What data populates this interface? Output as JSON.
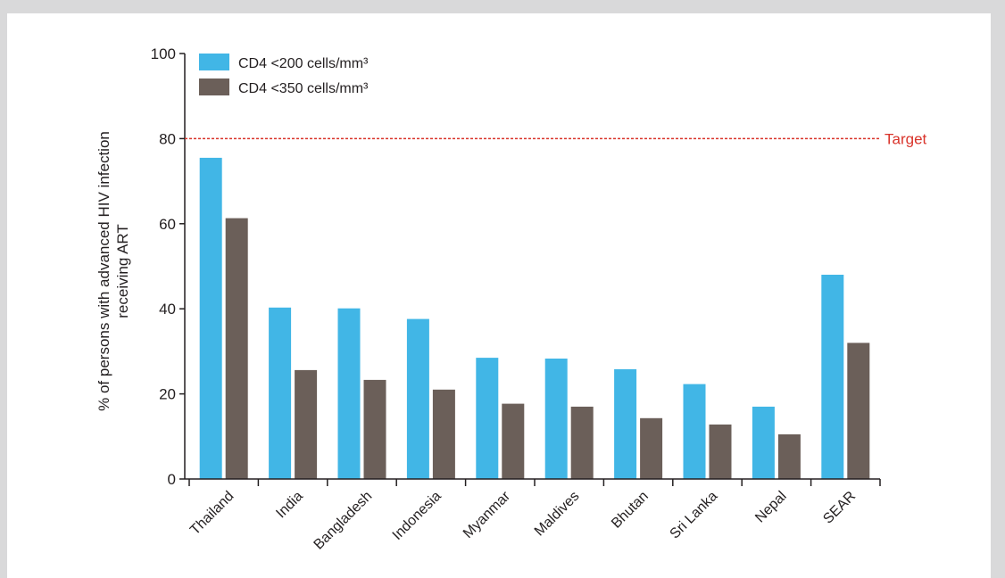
{
  "chart_data": {
    "type": "bar",
    "categories": [
      "Thailand",
      "India",
      "Bangladesh",
      "Indonesia",
      "Myanmar",
      "Maldives",
      "Bhutan",
      "Sri Lanka",
      "Nepal",
      "SEAR"
    ],
    "series": [
      {
        "name": "CD4 <200 cells/mm³",
        "color": "#41b6e6",
        "values": [
          75.5,
          40.3,
          40.1,
          37.6,
          28.5,
          28.3,
          25.8,
          22.3,
          17.0,
          48.0
        ]
      },
      {
        "name": "CD4 <350 cells/mm³",
        "color": "#6b5f59",
        "values": [
          61.3,
          25.6,
          23.3,
          21.0,
          17.7,
          17.0,
          14.3,
          12.8,
          10.5,
          32.0
        ]
      }
    ],
    "ylabel_line1": "% of persons with advanced HIV infection",
    "ylabel_line2": "receiving ART",
    "xlabel": "",
    "ylim": [
      0,
      100
    ],
    "yticks": [
      0,
      20,
      40,
      60,
      80,
      100
    ],
    "reference_line": {
      "value": 80,
      "label": "Target",
      "color": "#d9342b"
    },
    "legend_position": "top-left",
    "grid": false
  }
}
